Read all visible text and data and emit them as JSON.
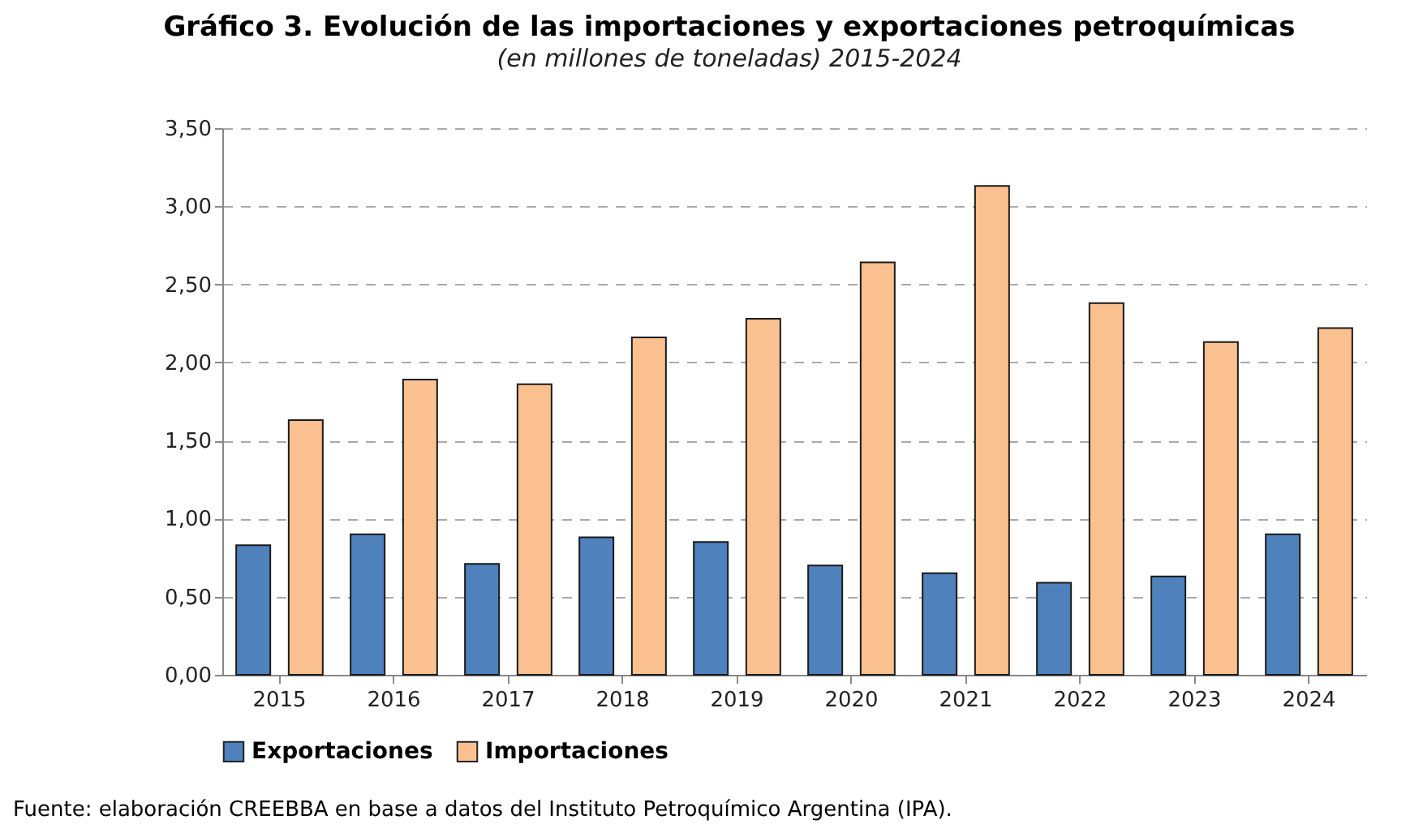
{
  "chart_data": {
    "type": "bar",
    "title": "Gráfico 3. Evolución de las importaciones y exportaciones petroquímicas",
    "subtitle": "(en millones de toneladas) 2015-2024",
    "categories": [
      "2015",
      "2016",
      "2017",
      "2018",
      "2019",
      "2020",
      "2021",
      "2022",
      "2023",
      "2024"
    ],
    "series": [
      {
        "name": "Exportaciones",
        "color": "#4f81bd",
        "values": [
          0.83,
          0.9,
          0.71,
          0.88,
          0.85,
          0.7,
          0.65,
          0.59,
          0.63,
          0.9
        ]
      },
      {
        "name": "Importaciones",
        "color": "#fac090",
        "values": [
          1.63,
          1.89,
          1.86,
          2.16,
          2.28,
          2.64,
          3.13,
          2.38,
          2.13,
          2.22
        ]
      }
    ],
    "ylim": [
      0,
      3.5
    ],
    "yticks": [
      {
        "value": 0,
        "label": "0,00"
      },
      {
        "value": 0.5,
        "label": "0,50"
      },
      {
        "value": 1,
        "label": "1,00"
      },
      {
        "value": 1.5,
        "label": "1,50"
      },
      {
        "value": 2,
        "label": "2,00"
      },
      {
        "value": 2.5,
        "label": "2,50"
      },
      {
        "value": 3,
        "label": "3,00"
      },
      {
        "value": 3.5,
        "label": "3,50"
      }
    ],
    "grid": "y",
    "legend": "bottom",
    "annotations": [
      "Fuente: elaboración CREEBBA en base a datos del Instituto Petroquímico Argentina (IPA)."
    ]
  }
}
